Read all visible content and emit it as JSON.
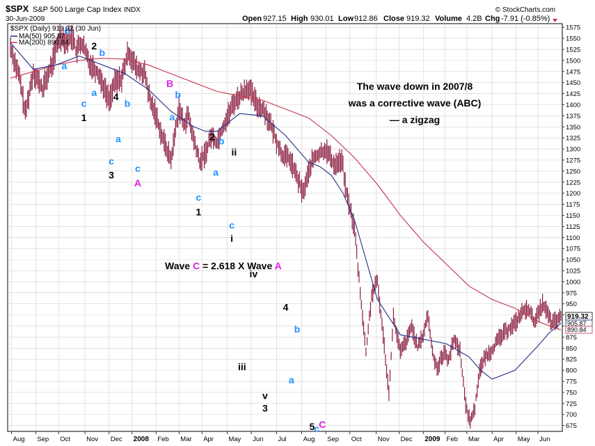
{
  "header": {
    "symbol": "$SPX",
    "name": "S&P 500 Large Cap Index",
    "exchange": "INDX",
    "date": "30-Jun-2009",
    "brand": "© StockCharts.com",
    "open_label": "Open",
    "open": "927.15",
    "high_label": "High",
    "high": "930.01",
    "low_label": "Low",
    "low": "912.86",
    "close_label": "Close",
    "close": "919.32",
    "volume_label": "Volume",
    "volume": "4.2B",
    "chg_label": "Chg",
    "chg": "-7.91 (-0.85%)"
  },
  "legend": {
    "main": "$SPX (Daily) 919.32 (30 Jun)",
    "ma50": "MA(50) 905.87",
    "ma200": "MA(200) 890.84"
  },
  "last_value_tags": [
    "919.32",
    "905.87",
    "890.84"
  ],
  "colors": {
    "candles": "#8b1e3f",
    "ma50": "#1f2d86",
    "ma200": "#c8334d",
    "wave_black": "#000000",
    "wave_blue": "#1e90ff",
    "wave_magenta": "#e020e0",
    "grid": "#d0d0d0"
  },
  "annotations": {
    "note_line1": "The wave down in 2007/8",
    "note_line2": "was a corrective wave (ABC)",
    "note_line3": "— a zigzag",
    "ratio_prefix": "Wave ",
    "ratio_c": "C",
    "ratio_mid": " = 2.618 X Wave ",
    "ratio_a": "A"
  },
  "chart_data": {
    "type": "line",
    "title": "$SPX S&P 500 Large Cap Index INDX",
    "ylim": [
      665,
      1580
    ],
    "yticks": [
      675,
      700,
      725,
      750,
      775,
      800,
      825,
      850,
      875,
      900,
      925,
      950,
      975,
      1000,
      1025,
      1050,
      1075,
      1100,
      1125,
      1150,
      1175,
      1200,
      1225,
      1250,
      1275,
      1300,
      1325,
      1350,
      1375,
      1400,
      1425,
      1450,
      1475,
      1500,
      1525,
      1550,
      1575
    ],
    "xticks": [
      {
        "label": "Aug",
        "t": 1,
        "bold": false
      },
      {
        "label": "Sep",
        "t": 22,
        "bold": false
      },
      {
        "label": "Oct",
        "t": 42,
        "bold": false
      },
      {
        "label": "Nov",
        "t": 65,
        "bold": false
      },
      {
        "label": "Dec",
        "t": 86,
        "bold": false
      },
      {
        "label": "2008",
        "t": 106,
        "bold": true
      },
      {
        "label": "Feb",
        "t": 127,
        "bold": false
      },
      {
        "label": "Mar",
        "t": 147,
        "bold": false
      },
      {
        "label": "Apr",
        "t": 167,
        "bold": false
      },
      {
        "label": "May",
        "t": 189,
        "bold": false
      },
      {
        "label": "Jun",
        "t": 210,
        "bold": false
      },
      {
        "label": "Jul",
        "t": 232,
        "bold": false
      },
      {
        "label": "Aug",
        "t": 254,
        "bold": false
      },
      {
        "label": "Sep",
        "t": 275,
        "bold": false
      },
      {
        "label": "Oct",
        "t": 296,
        "bold": false
      },
      {
        "label": "Nov",
        "t": 319,
        "bold": false
      },
      {
        "label": "Dec",
        "t": 339,
        "bold": false
      },
      {
        "label": "2009",
        "t": 360,
        "bold": true
      },
      {
        "label": "Feb",
        "t": 379,
        "bold": false
      },
      {
        "label": "Mar",
        "t": 398,
        "bold": false
      },
      {
        "label": "Apr",
        "t": 420,
        "bold": false
      },
      {
        "label": "May",
        "t": 441,
        "bold": false
      },
      {
        "label": "Jun",
        "t": 460,
        "bold": false
      }
    ],
    "series": [
      {
        "name": "$SPX (Daily)",
        "t": [
          0,
          8,
          13,
          20,
          28,
          36,
          43,
          49,
          55,
          57,
          62,
          69,
          77,
          86,
          91,
          97,
          103,
          110,
          117,
          122,
          126,
          132,
          140,
          147,
          151,
          155,
          158,
          165,
          170,
          175,
          180,
          187,
          195,
          202,
          207,
          215,
          222,
          229,
          236,
          244,
          250,
          255,
          262,
          265,
          270,
          275,
          282,
          289,
          293,
          300,
          304,
          310,
          315,
          320,
          326,
          330,
          334,
          340,
          346,
          350,
          355,
          360,
          364,
          368,
          372,
          378,
          382,
          387,
          392,
          397,
          401,
          405,
          409,
          414,
          421,
          427,
          433,
          441,
          446,
          452,
          456,
          460,
          464,
          468,
          472,
          480
        ],
        "values": [
          1530,
          1460,
          1380,
          1475,
          1435,
          1490,
          1555,
          1545,
          1555,
          1520,
          1540,
          1495,
          1470,
          1410,
          1450,
          1460,
          1520,
          1480,
          1470,
          1405,
          1385,
          1330,
          1275,
          1395,
          1355,
          1375,
          1340,
          1270,
          1290,
          1330,
          1315,
          1360,
          1405,
          1425,
          1440,
          1400,
          1385,
          1340,
          1290,
          1275,
          1235,
          1200,
          1265,
          1280,
          1290,
          1300,
          1265,
          1275,
          1200,
          1120,
          1005,
          840,
          970,
          1000,
          855,
          750,
          920,
          840,
          870,
          900,
          850,
          880,
          925,
          840,
          805,
          840,
          825,
          870,
          845,
          720,
          685,
          715,
          800,
          830,
          850,
          875,
          890,
          910,
          930,
          940,
          910,
          925,
          950,
          930,
          905,
          919
        ]
      },
      {
        "name": "MA(50)",
        "t": [
          0,
          20,
          40,
          60,
          80,
          100,
          120,
          140,
          160,
          170,
          180,
          200,
          220,
          240,
          260,
          270,
          280,
          290,
          300,
          310,
          320,
          340,
          360,
          380,
          400,
          410,
          420,
          440,
          460,
          470,
          480
        ],
        "values": [
          1540,
          1480,
          1490,
          1510,
          1490,
          1470,
          1435,
          1385,
          1350,
          1340,
          1340,
          1380,
          1375,
          1330,
          1270,
          1260,
          1240,
          1200,
          1140,
          1050,
          960,
          880,
          870,
          860,
          830,
          800,
          780,
          800,
          855,
          885,
          906
        ]
      },
      {
        "name": "MA(200)",
        "t": [
          0,
          20,
          40,
          60,
          80,
          100,
          120,
          140,
          160,
          180,
          200,
          220,
          240,
          260,
          280,
          300,
          320,
          340,
          360,
          380,
          400,
          420,
          440,
          460,
          480
        ],
        "values": [
          1460,
          1475,
          1490,
          1500,
          1505,
          1503,
          1490,
          1470,
          1450,
          1430,
          1420,
          1410,
          1390,
          1370,
          1330,
          1280,
          1220,
          1150,
          1090,
          1040,
          990,
          960,
          940,
          910,
          891
        ]
      }
    ],
    "wave_labels": [
      {
        "text": "b",
        "t": 50,
        "v": 1560,
        "color": "blue"
      },
      {
        "text": "a",
        "t": 47,
        "v": 1480,
        "color": "blue"
      },
      {
        "text": "2",
        "t": 73,
        "v": 1525,
        "color": "black"
      },
      {
        "text": "b",
        "t": 80,
        "v": 1510,
        "color": "blue"
      },
      {
        "text": "a",
        "t": 73,
        "v": 1420,
        "color": "blue"
      },
      {
        "text": "c",
        "t": 64,
        "v": 1395,
        "color": "blue"
      },
      {
        "text": "1",
        "t": 64,
        "v": 1363,
        "color": "black"
      },
      {
        "text": "4",
        "t": 92,
        "v": 1410,
        "color": "black"
      },
      {
        "text": "b",
        "t": 102,
        "v": 1395,
        "color": "blue"
      },
      {
        "text": "a",
        "t": 94,
        "v": 1315,
        "color": "blue"
      },
      {
        "text": "c",
        "t": 88,
        "v": 1265,
        "color": "blue"
      },
      {
        "text": "3",
        "t": 88,
        "v": 1233,
        "color": "black"
      },
      {
        "text": "c",
        "t": 111,
        "v": 1248,
        "color": "blue"
      },
      {
        "text": "A",
        "t": 111,
        "v": 1215,
        "color": "magenta"
      },
      {
        "text": "B",
        "t": 139,
        "v": 1440,
        "color": "magenta"
      },
      {
        "text": "b",
        "t": 146,
        "v": 1415,
        "color": "blue"
      },
      {
        "text": "a",
        "t": 141,
        "v": 1365,
        "color": "blue"
      },
      {
        "text": "2",
        "t": 176,
        "v": 1320,
        "color": "black"
      },
      {
        "text": "b",
        "t": 184,
        "v": 1310,
        "color": "blue"
      },
      {
        "text": "a",
        "t": 179,
        "v": 1240,
        "color": "blue"
      },
      {
        "text": "ii",
        "t": 195,
        "v": 1285,
        "color": "black"
      },
      {
        "text": "c",
        "t": 164,
        "v": 1183,
        "color": "blue"
      },
      {
        "text": "1",
        "t": 164,
        "v": 1150,
        "color": "black"
      },
      {
        "text": "c",
        "t": 193,
        "v": 1120,
        "color": "blue"
      },
      {
        "text": "i",
        "t": 193,
        "v": 1090,
        "color": "black"
      },
      {
        "text": "iv",
        "t": 212,
        "v": 1010,
        "color": "black"
      },
      {
        "text": "4",
        "t": 240,
        "v": 935,
        "color": "black"
      },
      {
        "text": "b",
        "t": 250,
        "v": 885,
        "color": "blue"
      },
      {
        "text": "iii",
        "t": 202,
        "v": 800,
        "color": "black"
      },
      {
        "text": "a",
        "t": 245,
        "v": 770,
        "color": "blue"
      },
      {
        "text": "v",
        "t": 222,
        "v": 735,
        "color": "black"
      },
      {
        "text": "3",
        "t": 222,
        "v": 707,
        "color": "black"
      },
      {
        "text": "5",
        "t": 263,
        "v": 665,
        "color": "black"
      },
      {
        "text": "c",
        "t": 267,
        "v": 660,
        "color": "blue"
      },
      {
        "text": "C",
        "t": 272,
        "v": 670,
        "color": "magenta"
      }
    ]
  }
}
